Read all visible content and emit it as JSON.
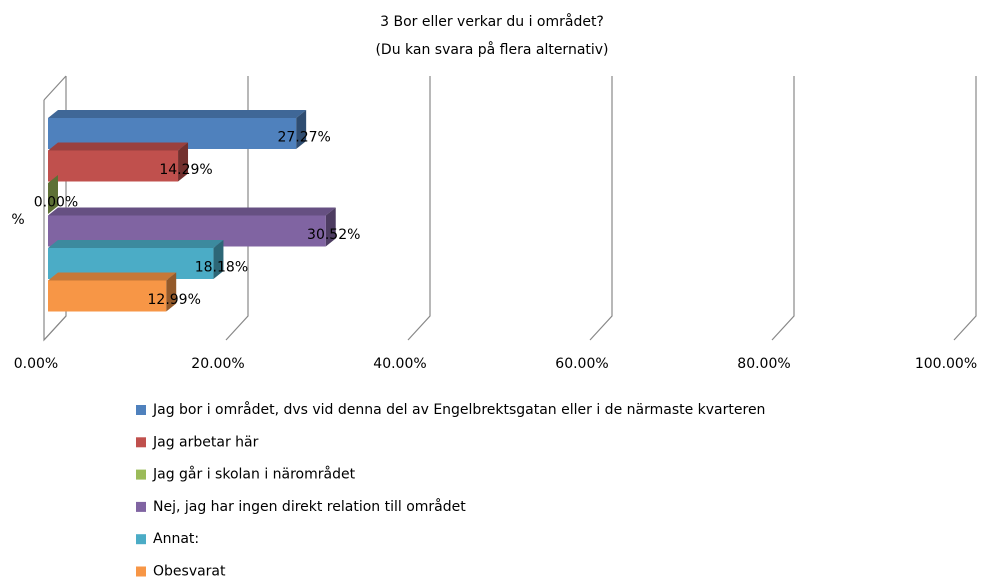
{
  "chart_data": {
    "type": "bar3d_horizontal",
    "title": "3 Bor eller verkar du i området?",
    "subtitle": "(Du kan svara på flera alternativ)",
    "categories": [
      "%"
    ],
    "xlim": [
      0,
      100
    ],
    "xticks": [
      {
        "value": 0,
        "label": "0.00%"
      },
      {
        "value": 20,
        "label": "20.00%"
      },
      {
        "value": 40,
        "label": "40.00%"
      },
      {
        "value": 60,
        "label": "60.00%"
      },
      {
        "value": 80,
        "label": "80.00%"
      },
      {
        "value": 100,
        "label": "100.00%"
      }
    ],
    "grid": true,
    "legend": "bottom",
    "series": [
      {
        "name": "Jag bor i området, dvs vid denna del av Engelbrektsgatan eller i de närmaste kvarteren",
        "color": "#4f81bd",
        "values": [
          27.27
        ],
        "value_labels": [
          "27.27%"
        ]
      },
      {
        "name": "Jag arbetar här",
        "color": "#c0504d",
        "values": [
          14.29
        ],
        "value_labels": [
          "14.29%"
        ]
      },
      {
        "name": "Jag går i skolan i närområdet",
        "color": "#9bbb59",
        "values": [
          0
        ],
        "value_labels": [
          "0.00%"
        ]
      },
      {
        "name": "Nej, jag har ingen direkt relation till området",
        "color": "#8064a2",
        "values": [
          30.52
        ],
        "value_labels": [
          "30.52%"
        ]
      },
      {
        "name": "Annat:",
        "color": "#4bacc6",
        "values": [
          18.18
        ],
        "value_labels": [
          "18.18%"
        ]
      },
      {
        "name": "Obesvarat",
        "color": "#f79646",
        "values": [
          12.99
        ],
        "value_labels": [
          "12.99%"
        ]
      }
    ]
  }
}
